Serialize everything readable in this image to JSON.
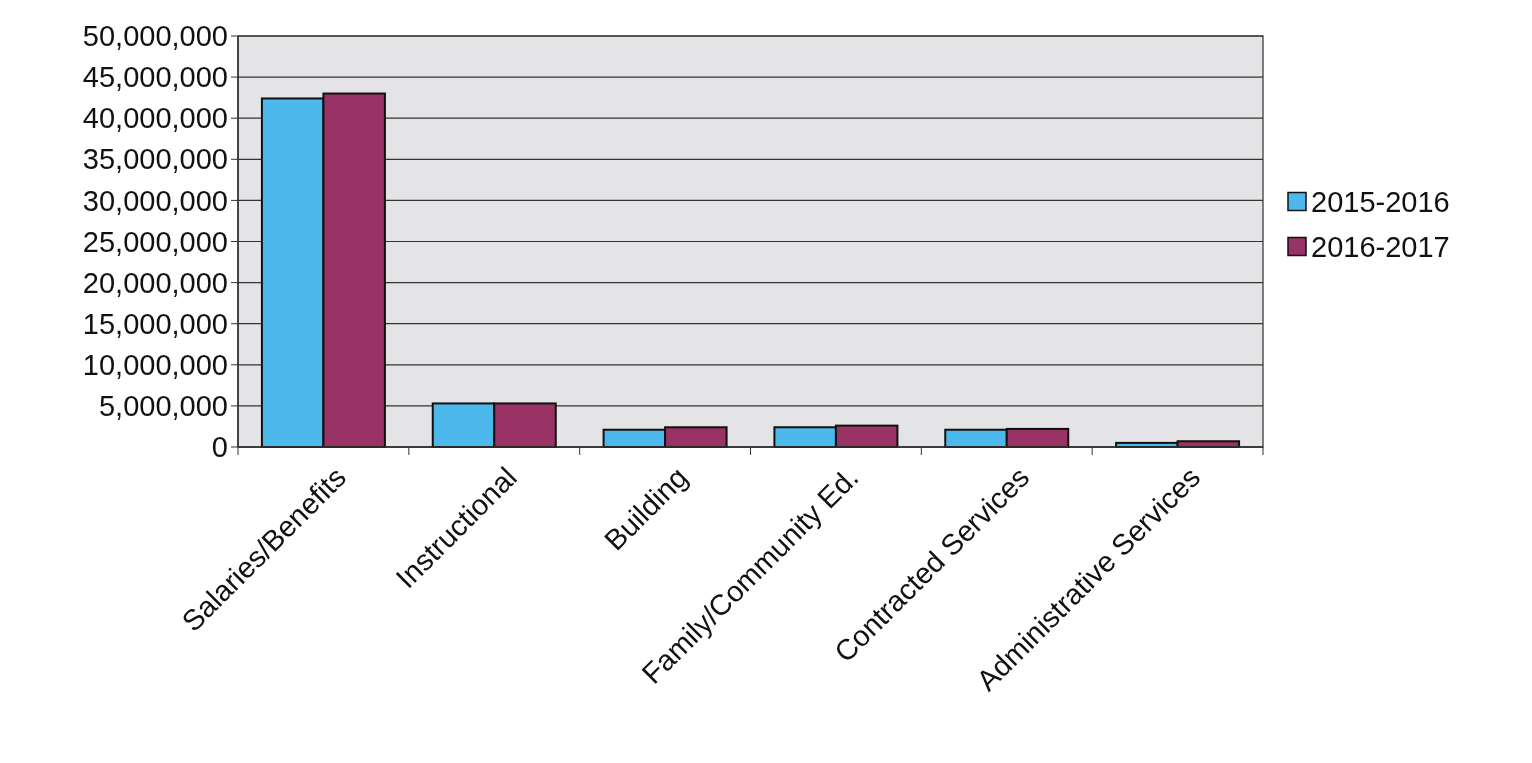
{
  "chart_data": {
    "type": "bar",
    "categories": [
      "Salaries/Benefits",
      "Instructional",
      "Building",
      "Family/Community Ed.",
      "Contracted Services",
      "Administrative Services"
    ],
    "series": [
      {
        "name": "2015-2016",
        "color": "#4db8ec",
        "values": [
          42400000,
          5300000,
          2100000,
          2400000,
          2100000,
          500000
        ]
      },
      {
        "name": "2016-2017",
        "color": "#993366",
        "values": [
          43000000,
          5300000,
          2400000,
          2600000,
          2200000,
          700000
        ]
      }
    ],
    "ylim": [
      0,
      50000000
    ],
    "yticks": [
      {
        "value": 0,
        "label": "0"
      },
      {
        "value": 5000000,
        "label": "5,000,000"
      },
      {
        "value": 10000000,
        "label": "10,000,000"
      },
      {
        "value": 15000000,
        "label": "15,000,000"
      },
      {
        "value": 20000000,
        "label": "20,000,000"
      },
      {
        "value": 25000000,
        "label": "25,000,000"
      },
      {
        "value": 30000000,
        "label": "30,000,000"
      },
      {
        "value": 35000000,
        "label": "35,000,000"
      },
      {
        "value": 40000000,
        "label": "40,000,000"
      },
      {
        "value": 45000000,
        "label": "45,000,000"
      },
      {
        "value": 50000000,
        "label": "50,000,000"
      }
    ],
    "grid": "y",
    "legend": "right"
  }
}
